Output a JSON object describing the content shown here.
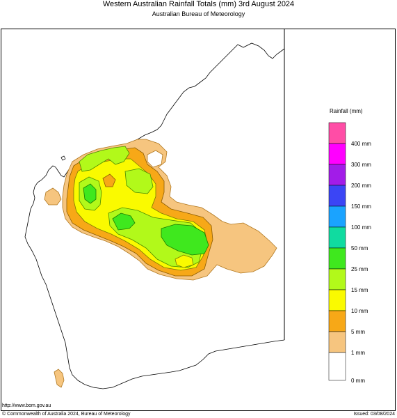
{
  "header": {
    "title": "Western Australian Rainfall Totals (mm) 3rd August 2024",
    "subtitle": "Australian Bureau of Meteorology"
  },
  "legend": {
    "title": "Rainfall (mm)",
    "levels": [
      {
        "label": "0 mm",
        "color": "#ffffff"
      },
      {
        "label": "1 mm",
        "color": "#f6c57f"
      },
      {
        "label": "5 mm",
        "color": "#f7a817"
      },
      {
        "label": "10 mm",
        "color": "#fafa00"
      },
      {
        "label": "15 mm",
        "color": "#b2f91a"
      },
      {
        "label": "25 mm",
        "color": "#3fe81e"
      },
      {
        "label": "50 mm",
        "color": "#10dba0"
      },
      {
        "label": "100 mm",
        "color": "#1aa3ff"
      },
      {
        "label": "150 mm",
        "color": "#3b45f5"
      },
      {
        "label": "200 mm",
        "color": "#a21ce8"
      },
      {
        "label": "300 mm",
        "color": "#ff00ff"
      },
      {
        "label": "400 mm",
        "color": "#ff4da6"
      }
    ]
  },
  "footer": {
    "url": "http://www.bom.gov.au",
    "copyright": "© Commonwealth of Australia 2024, Bureau of Meteorology",
    "issued": "Issued: 03/08/2024"
  }
}
